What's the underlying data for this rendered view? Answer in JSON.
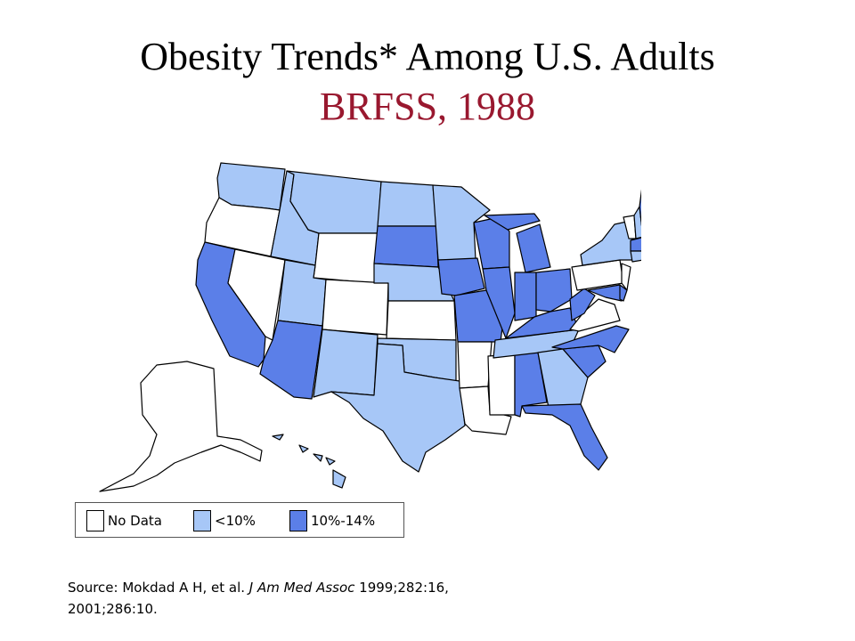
{
  "title": {
    "line1": "Obesity Trends* Among U.S. Adults",
    "line2": "BRFSS, 1988"
  },
  "colors": {
    "no_data": "#ffffff",
    "under_10": "#a7c7f7",
    "ten_to_14": "#5b7fe8",
    "subtitle": "#99182f"
  },
  "legend": [
    {
      "label": "No Data",
      "category": "no_data"
    },
    {
      "label": "<10%",
      "category": "under_10"
    },
    {
      "label": "10%-14%",
      "category": "ten_to_14"
    }
  ],
  "states": {
    "no_data": [
      "OR",
      "NV",
      "WY",
      "CO",
      "KS",
      "AR",
      "LA",
      "MS",
      "VA",
      "PA",
      "NJ",
      "VT",
      "AK"
    ],
    "under_10": [
      "WA",
      "ID",
      "MT",
      "UT",
      "NM",
      "TX",
      "OK",
      "NE",
      "ND",
      "MN",
      "TN",
      "GA",
      "NY",
      "NH",
      "CT",
      "HI"
    ],
    "ten_to_14": [
      "CA",
      "AZ",
      "SD",
      "IA",
      "MO",
      "WI",
      "IL",
      "IN",
      "MI",
      "OH",
      "KY",
      "WV",
      "NC",
      "SC",
      "AL",
      "FL",
      "ME",
      "MA",
      "RI",
      "MD",
      "DE"
    ]
  },
  "source": {
    "prefix": "Source: Mokdad A H, et al. ",
    "journal": "J Am Med Assoc",
    "suffix": " 1999;282:16,",
    "line2": "2001;286:10."
  }
}
